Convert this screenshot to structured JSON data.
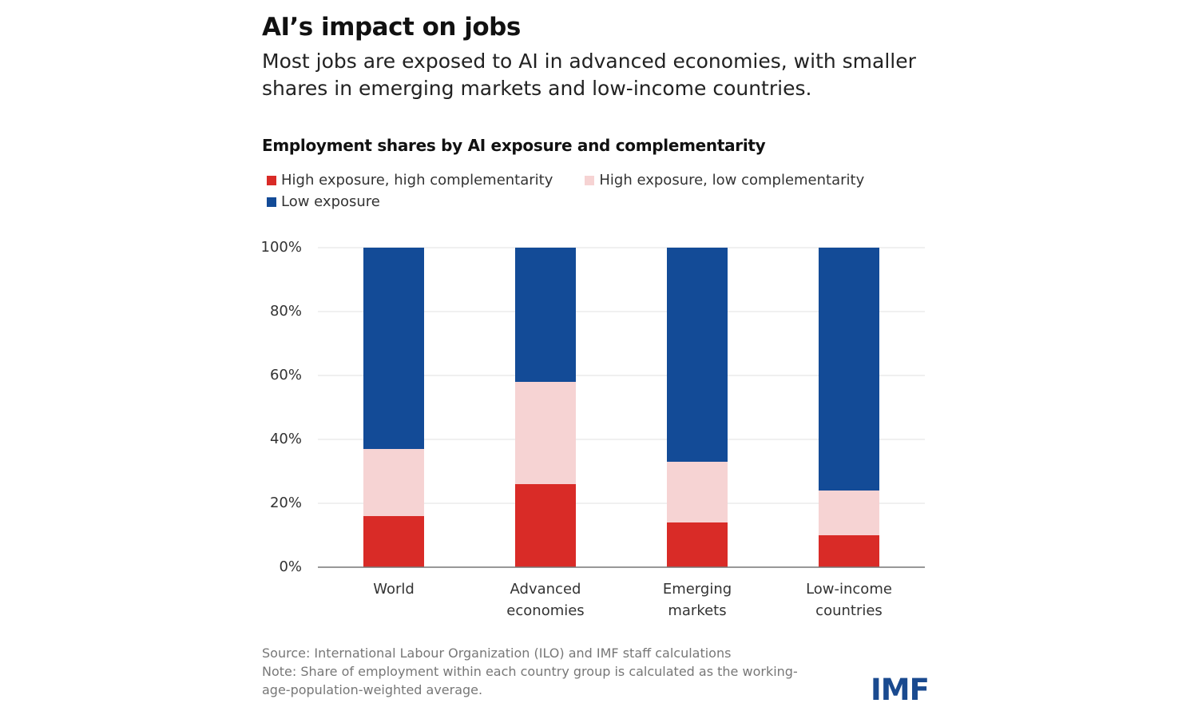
{
  "chart_data": {
    "type": "stacked-bar",
    "title": "AI’s impact on jobs",
    "subtitle": "Most jobs are exposed to AI in advanced economies, with smaller shares in emerging markets and low-income countries.",
    "chart_title": "Employment shares by AI exposure and complementarity",
    "categories": [
      "World",
      "Advanced economies",
      "Emerging markets",
      "Low-income countries"
    ],
    "series": [
      {
        "name": "High exposure, high complementarity",
        "color": "#d92b27",
        "values": [
          16,
          26,
          14,
          10
        ]
      },
      {
        "name": "High exposure, low complementarity",
        "color": "#f6d3d3",
        "values": [
          21,
          32,
          19,
          14
        ]
      },
      {
        "name": "Low exposure",
        "color": "#134b97",
        "values": [
          63,
          42,
          67,
          76
        ]
      }
    ],
    "ylim": [
      0,
      100
    ],
    "yticks": [
      {
        "value": 0,
        "label": "0%"
      },
      {
        "value": 20,
        "label": "20%"
      },
      {
        "value": 40,
        "label": "40%"
      },
      {
        "value": 60,
        "label": "60%"
      },
      {
        "value": 80,
        "label": "80%"
      },
      {
        "value": 100,
        "label": "100%"
      }
    ],
    "grid": true,
    "source": "Source: International Labour Organization (ILO) and IMF staff calculations",
    "note": "Note: Share of employment within each country group is calculated as the working-age-population-weighted average.",
    "logo": "IMF"
  }
}
